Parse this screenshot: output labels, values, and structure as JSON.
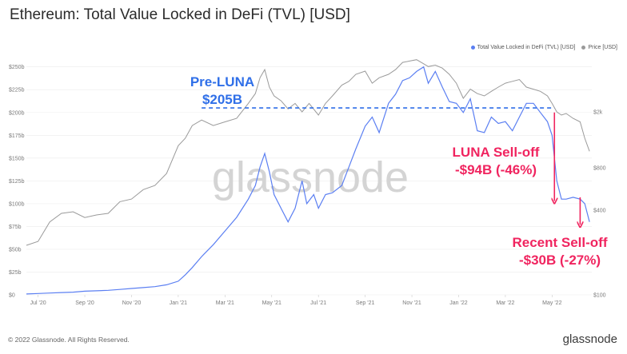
{
  "title": "Ethereum: Total Value Locked in DeFi (TVL) [USD]",
  "watermark": "glassnode",
  "footer": {
    "copyright": "© 2022 Glassnode. All Rights Reserved.",
    "brand": "glassnode"
  },
  "colors": {
    "tvl": "#5b7ff2",
    "price": "#9a9a9a",
    "preluna": "#2f6fe8",
    "selloff": "#f0245f",
    "grid": "#ececec"
  },
  "chart_data": {
    "type": "line",
    "title": "Ethereum: Total Value Locked in DeFi (TVL) [USD]",
    "legend_position": "top-right",
    "grid": true,
    "y_left": {
      "range": [
        0,
        262
      ],
      "ticks": [
        0,
        25,
        50,
        75,
        100,
        125,
        150,
        175,
        200,
        225,
        250
      ],
      "tick_labels": [
        "$0",
        "$25b",
        "$50b",
        "$75b",
        "$100b",
        "$125b",
        "$150b",
        "$175b",
        "$200b",
        "$225b",
        "$250b"
      ]
    },
    "y_right": {
      "scale": "log",
      "range": [
        100,
        5000
      ],
      "ticks": [
        100,
        400,
        800,
        2000
      ],
      "tick_labels": [
        "$100",
        "$400",
        "$800",
        "$2k"
      ]
    },
    "x_ticks": [
      {
        "month": 1,
        "label": "Jul '20"
      },
      {
        "month": 3,
        "label": "Sep '20"
      },
      {
        "month": 5,
        "label": "Nov '20"
      },
      {
        "month": 7,
        "label": "Jan '21"
      },
      {
        "month": 9,
        "label": "Mar '21"
      },
      {
        "month": 11,
        "label": "May '21"
      },
      {
        "month": 13,
        "label": "Jul '21"
      },
      {
        "month": 15,
        "label": "Sep '21"
      },
      {
        "month": 17,
        "label": "Nov '21"
      },
      {
        "month": 19,
        "label": "Jan '22"
      },
      {
        "month": 21,
        "label": "Mar '22"
      },
      {
        "month": 23,
        "label": "May '22"
      }
    ],
    "x_range": [
      0.5,
      24.7
    ],
    "series": [
      {
        "name": "Total Value Locked in DeFi (TVL) [USD]",
        "axis": "left",
        "points": [
          [
            0.5,
            1
          ],
          [
            1.0,
            1.5
          ],
          [
            1.5,
            2
          ],
          [
            2.0,
            2.5
          ],
          [
            2.5,
            3
          ],
          [
            3.0,
            4
          ],
          [
            3.5,
            4.5
          ],
          [
            4.0,
            5
          ],
          [
            4.5,
            6
          ],
          [
            5.0,
            7
          ],
          [
            5.5,
            8
          ],
          [
            6.0,
            9
          ],
          [
            6.5,
            11
          ],
          [
            7.0,
            15
          ],
          [
            7.3,
            22
          ],
          [
            7.6,
            30
          ],
          [
            8.0,
            42
          ],
          [
            8.5,
            55
          ],
          [
            9.0,
            70
          ],
          [
            9.5,
            85
          ],
          [
            10.0,
            105
          ],
          [
            10.3,
            120
          ],
          [
            10.5,
            140
          ],
          [
            10.7,
            155
          ],
          [
            10.9,
            135
          ],
          [
            11.1,
            110
          ],
          [
            11.4,
            95
          ],
          [
            11.7,
            80
          ],
          [
            12.0,
            95
          ],
          [
            12.3,
            125
          ],
          [
            12.5,
            100
          ],
          [
            12.8,
            110
          ],
          [
            13.0,
            95
          ],
          [
            13.3,
            110
          ],
          [
            13.6,
            112
          ],
          [
            14.0,
            120
          ],
          [
            14.3,
            140
          ],
          [
            14.6,
            160
          ],
          [
            15.0,
            185
          ],
          [
            15.3,
            195
          ],
          [
            15.6,
            178
          ],
          [
            16.0,
            210
          ],
          [
            16.3,
            220
          ],
          [
            16.6,
            235
          ],
          [
            16.9,
            238
          ],
          [
            17.2,
            245
          ],
          [
            17.5,
            250
          ],
          [
            17.7,
            232
          ],
          [
            18.0,
            245
          ],
          [
            18.3,
            228
          ],
          [
            18.6,
            212
          ],
          [
            18.9,
            210
          ],
          [
            19.2,
            200
          ],
          [
            19.5,
            215
          ],
          [
            19.8,
            180
          ],
          [
            20.1,
            178
          ],
          [
            20.4,
            195
          ],
          [
            20.7,
            188
          ],
          [
            21.0,
            190
          ],
          [
            21.3,
            180
          ],
          [
            21.6,
            195
          ],
          [
            21.9,
            210
          ],
          [
            22.2,
            210
          ],
          [
            22.5,
            200
          ],
          [
            22.8,
            190
          ],
          [
            23.0,
            175
          ],
          [
            23.2,
            125
          ],
          [
            23.4,
            105
          ],
          [
            23.6,
            105
          ],
          [
            23.9,
            107
          ],
          [
            24.2,
            105
          ],
          [
            24.4,
            100
          ],
          [
            24.6,
            80
          ]
        ]
      },
      {
        "name": "Price [USD]",
        "axis": "right",
        "points": [
          [
            0.5,
            225
          ],
          [
            1.0,
            240
          ],
          [
            1.5,
            330
          ],
          [
            2.0,
            380
          ],
          [
            2.5,
            390
          ],
          [
            3.0,
            355
          ],
          [
            3.5,
            370
          ],
          [
            4.0,
            380
          ],
          [
            4.5,
            460
          ],
          [
            5.0,
            480
          ],
          [
            5.5,
            560
          ],
          [
            6.0,
            600
          ],
          [
            6.5,
            730
          ],
          [
            7.0,
            1150
          ],
          [
            7.3,
            1300
          ],
          [
            7.6,
            1600
          ],
          [
            8.0,
            1750
          ],
          [
            8.5,
            1600
          ],
          [
            9.0,
            1700
          ],
          [
            9.5,
            1800
          ],
          [
            10.0,
            2300
          ],
          [
            10.3,
            2700
          ],
          [
            10.5,
            3500
          ],
          [
            10.7,
            4000
          ],
          [
            10.9,
            3000
          ],
          [
            11.1,
            2600
          ],
          [
            11.4,
            2400
          ],
          [
            11.7,
            2100
          ],
          [
            12.0,
            2300
          ],
          [
            12.3,
            2000
          ],
          [
            12.6,
            2300
          ],
          [
            13.0,
            1900
          ],
          [
            13.3,
            2300
          ],
          [
            13.6,
            2600
          ],
          [
            14.0,
            3100
          ],
          [
            14.3,
            3300
          ],
          [
            14.6,
            3700
          ],
          [
            15.0,
            3900
          ],
          [
            15.3,
            3200
          ],
          [
            15.6,
            3500
          ],
          [
            16.0,
            3700
          ],
          [
            16.3,
            4000
          ],
          [
            16.6,
            4500
          ],
          [
            16.9,
            4600
          ],
          [
            17.2,
            4700
          ],
          [
            17.5,
            4400
          ],
          [
            17.7,
            4200
          ],
          [
            18.0,
            4300
          ],
          [
            18.3,
            4100
          ],
          [
            18.6,
            3700
          ],
          [
            18.9,
            3200
          ],
          [
            19.2,
            2500
          ],
          [
            19.5,
            2900
          ],
          [
            19.8,
            2700
          ],
          [
            20.1,
            2600
          ],
          [
            20.4,
            2800
          ],
          [
            20.7,
            3000
          ],
          [
            21.0,
            3200
          ],
          [
            21.3,
            3300
          ],
          [
            21.6,
            3400
          ],
          [
            21.9,
            3000
          ],
          [
            22.2,
            2900
          ],
          [
            22.5,
            2800
          ],
          [
            22.8,
            2600
          ],
          [
            23.0,
            2300
          ],
          [
            23.2,
            2000
          ],
          [
            23.4,
            1900
          ],
          [
            23.6,
            1950
          ],
          [
            23.9,
            1800
          ],
          [
            24.2,
            1700
          ],
          [
            24.4,
            1300
          ],
          [
            24.6,
            1050
          ]
        ]
      }
    ],
    "annotations": {
      "preluna": {
        "line1": "Pre-LUNA",
        "line2": "$205B",
        "level": 205,
        "x_start": 8.0,
        "x_end": 23.1
      },
      "luna": {
        "line1": "LUNA Sell-off",
        "line2": "-$94B (-46%)",
        "arrow_x": 23.1,
        "arrow_from": 200,
        "arrow_to": 103
      },
      "recent": {
        "line1": "Recent Sell-off",
        "line2": "-$30B (-27%)",
        "arrow_x": 24.2,
        "arrow_from": 107,
        "arrow_to": 77
      }
    }
  }
}
